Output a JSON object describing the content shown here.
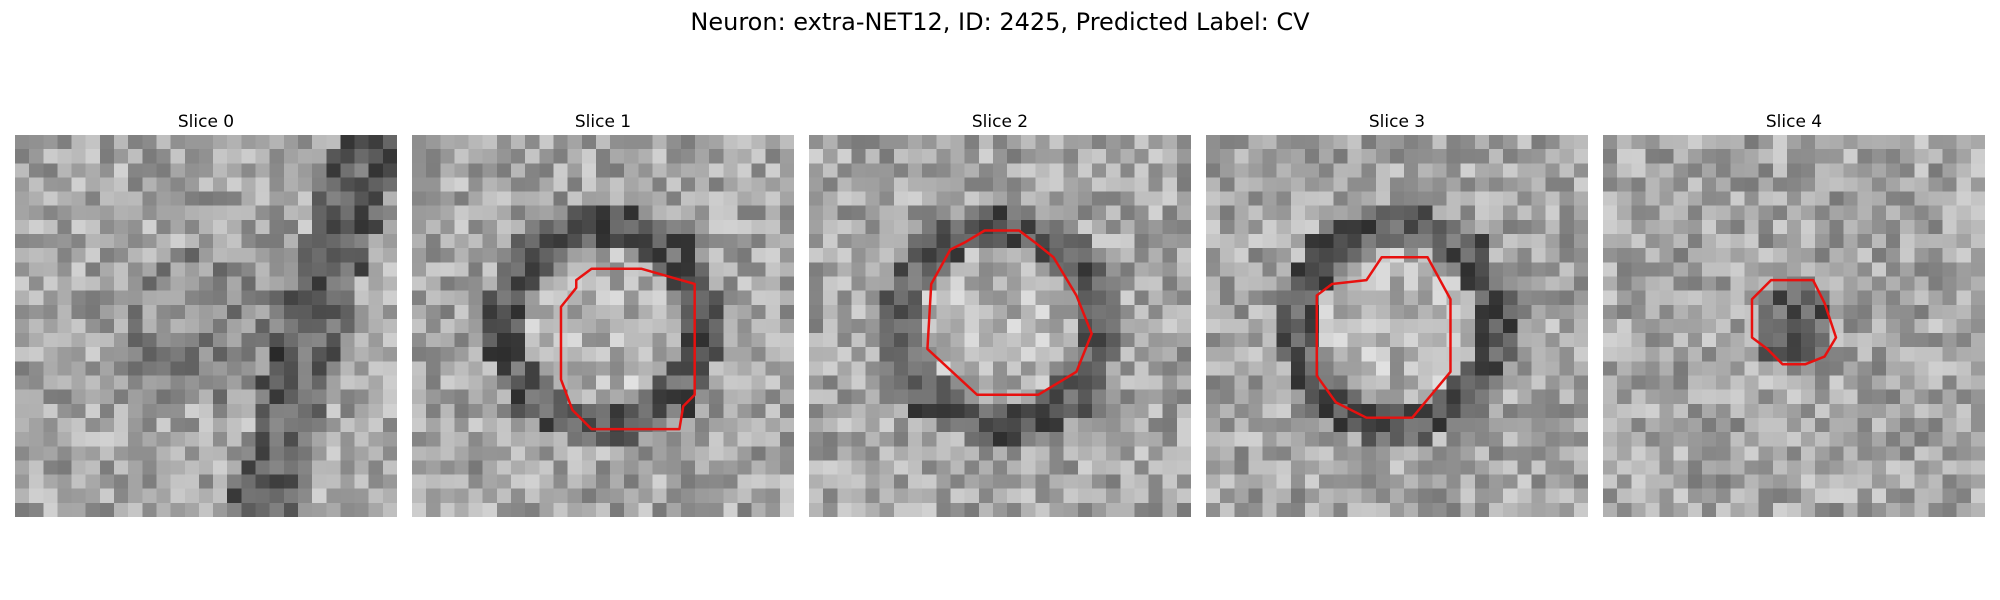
{
  "figure": {
    "title": "Neuron: extra-NET12, ID: 2425, Predicted Label: CV"
  },
  "colors": {
    "contour": "#e8110f",
    "colormap": "gray"
  },
  "panels": [
    {
      "title": "Slice 0",
      "seed": 11,
      "contour": []
    },
    {
      "title": "Slice 1",
      "seed": 23,
      "contour": [
        [
          0.47,
          0.35
        ],
        [
          0.6,
          0.35
        ],
        [
          0.74,
          0.39
        ],
        [
          0.74,
          0.68
        ],
        [
          0.71,
          0.71
        ],
        [
          0.7,
          0.77
        ],
        [
          0.47,
          0.77
        ],
        [
          0.42,
          0.72
        ],
        [
          0.39,
          0.64
        ],
        [
          0.39,
          0.45
        ],
        [
          0.43,
          0.4
        ],
        [
          0.43,
          0.38
        ]
      ]
    },
    {
      "title": "Slice 2",
      "seed": 37,
      "contour": [
        [
          0.37,
          0.3
        ],
        [
          0.41,
          0.28
        ],
        [
          0.46,
          0.25
        ],
        [
          0.55,
          0.25
        ],
        [
          0.59,
          0.28
        ],
        [
          0.64,
          0.32
        ],
        [
          0.7,
          0.42
        ],
        [
          0.74,
          0.52
        ],
        [
          0.72,
          0.57
        ],
        [
          0.7,
          0.62
        ],
        [
          0.6,
          0.68
        ],
        [
          0.44,
          0.68
        ],
        [
          0.31,
          0.56
        ],
        [
          0.32,
          0.39
        ]
      ]
    },
    {
      "title": "Slice 3",
      "seed": 53,
      "contour": [
        [
          0.42,
          0.38
        ],
        [
          0.46,
          0.32
        ],
        [
          0.58,
          0.32
        ],
        [
          0.64,
          0.43
        ],
        [
          0.64,
          0.62
        ],
        [
          0.54,
          0.74
        ],
        [
          0.42,
          0.74
        ],
        [
          0.34,
          0.7
        ],
        [
          0.29,
          0.63
        ],
        [
          0.29,
          0.42
        ],
        [
          0.33,
          0.39
        ]
      ]
    },
    {
      "title": "Slice 4",
      "seed": 71,
      "contour": [
        [
          0.44,
          0.38
        ],
        [
          0.55,
          0.38
        ],
        [
          0.58,
          0.44
        ],
        [
          0.61,
          0.53
        ],
        [
          0.58,
          0.58
        ],
        [
          0.53,
          0.6
        ],
        [
          0.47,
          0.6
        ],
        [
          0.43,
          0.56
        ],
        [
          0.39,
          0.53
        ],
        [
          0.39,
          0.43
        ]
      ]
    }
  ]
}
